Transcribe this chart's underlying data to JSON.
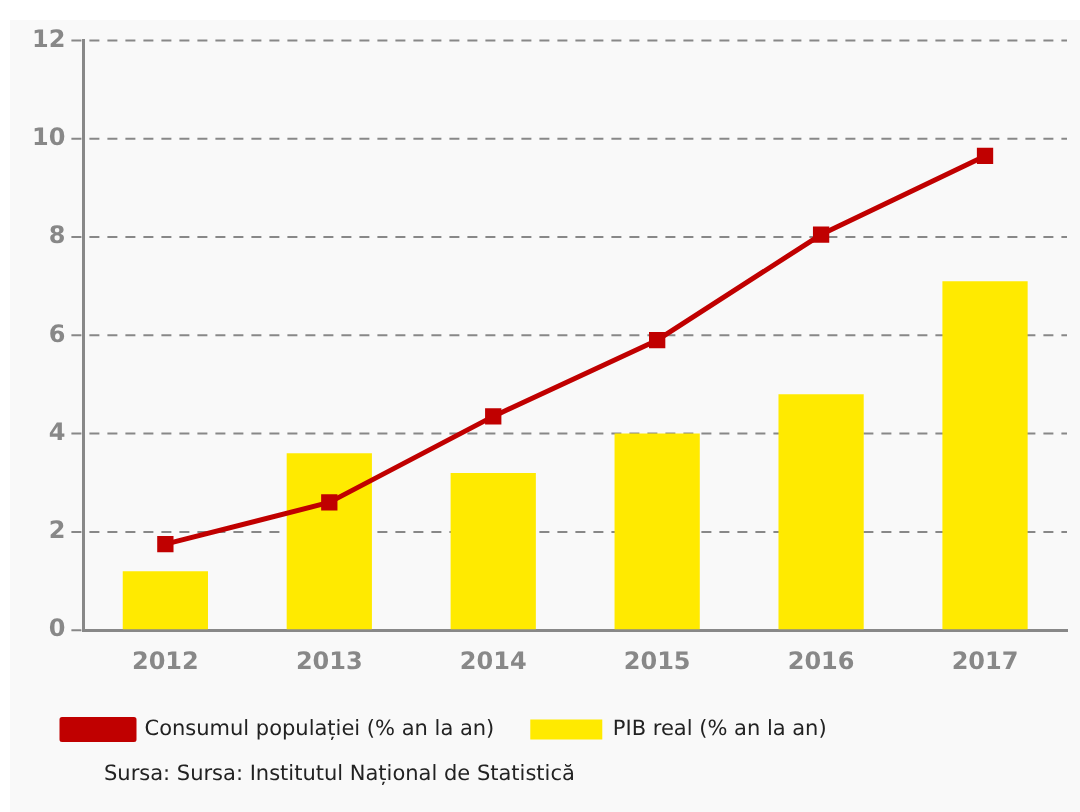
{
  "chart_data": {
    "type": "bar",
    "categories": [
      "2012",
      "2013",
      "2014",
      "2015",
      "2016",
      "2017"
    ],
    "series": [
      {
        "name": "PIB real (% an la an)",
        "color": "#ffea00",
        "values": [
          1.2,
          3.6,
          3.2,
          4.0,
          4.8,
          7.1
        ]
      },
      {
        "name": "Consumul populației (% an la an)",
        "type": "line",
        "color": "#c00000",
        "values": [
          1.75,
          2.6,
          4.35,
          5.9,
          8.05,
          9.65
        ]
      }
    ],
    "ylim": [
      0,
      12
    ],
    "yticks": [
      0,
      2,
      4,
      6,
      8,
      10,
      12
    ],
    "grid": "y",
    "legend": "bottom",
    "marker": "square",
    "line_style": "solid",
    "annotations": [
      "Sursa: Sursa: Institutul Național de Statistică"
    ]
  }
}
